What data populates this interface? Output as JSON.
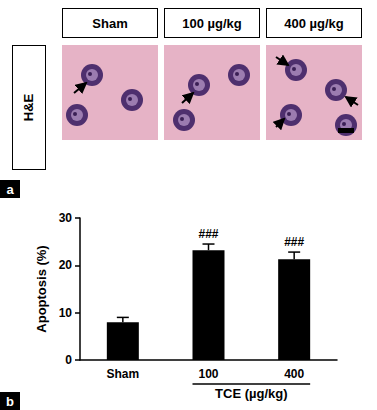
{
  "figure": {
    "panel_labels": [
      "a",
      "b"
    ],
    "image_row": {
      "label": "H&E",
      "columns": [
        "Sham",
        "100 µg/kg",
        "400 µg/kg"
      ]
    }
  },
  "chart_data": {
    "type": "bar",
    "ylabel": "Apoptosis (%)",
    "xlabel": "TCE (µg/kg)",
    "categories": [
      "Sham",
      "100",
      "400"
    ],
    "values": [
      8,
      23.2,
      21.3
    ],
    "errors": [
      1,
      1.3,
      1.5
    ],
    "annotations": [
      null,
      "###",
      "###"
    ],
    "color": "#000000",
    "ylim": [
      0,
      30
    ],
    "yticks": [
      0,
      10,
      20,
      30
    ],
    "grid": false
  }
}
